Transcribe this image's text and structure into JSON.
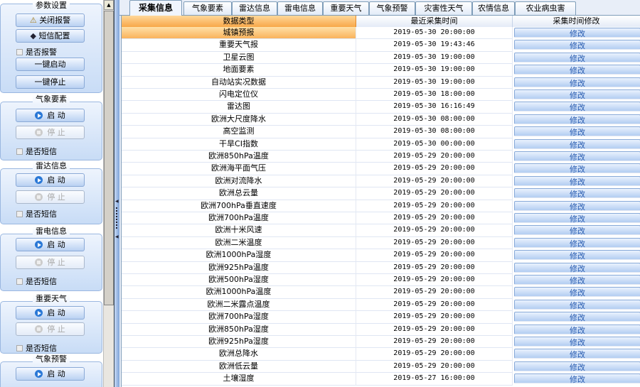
{
  "sidebar": {
    "param_group": {
      "title": "参数设置",
      "close_alarm": "关闭报警",
      "sms_config": "短信配置",
      "alarm_check": "是否报警",
      "start_all": "一键启动",
      "stop_all": "一键停止"
    },
    "groups": [
      {
        "title": "气象要素",
        "start": "启  动",
        "stop": "停  止",
        "sms_check": "是否短信"
      },
      {
        "title": "雷达信息",
        "start": "启  动",
        "stop": "停  止",
        "sms_check": "是否短信"
      },
      {
        "title": "雷电信息",
        "start": "启  动",
        "stop": "停  止",
        "sms_check": "是否短信"
      },
      {
        "title": "重要天气",
        "start": "启  动",
        "stop": "停  止",
        "sms_check": "是否短信"
      },
      {
        "title": "气象预警",
        "start": "启  动"
      }
    ]
  },
  "tabs": [
    "采集信息",
    "气象要素",
    "雷达信息",
    "雷电信息",
    "重要天气",
    "气象预警",
    "灾害性天气",
    "农情信息",
    "农业病虫害"
  ],
  "active_tab": 0,
  "table": {
    "headers": [
      "数据类型",
      "最近采集时间",
      "采集时间修改"
    ],
    "modify_label": "修改",
    "rows": [
      [
        "城镇预报",
        "2019-05-30 20:00:00"
      ],
      [
        "重要天气报",
        "2019-05-30 19:43:46"
      ],
      [
        "卫星云图",
        "2019-05-30 19:00:00"
      ],
      [
        "地面要素",
        "2019-05-30 19:00:00"
      ],
      [
        "自动站实况数据",
        "2019-05-30 19:00:00"
      ],
      [
        "闪电定位仪",
        "2019-05-30 18:00:00"
      ],
      [
        "雷达图",
        "2019-05-30 16:16:49"
      ],
      [
        "欧洲大尺度降水",
        "2019-05-30 08:00:00"
      ],
      [
        "高空监测",
        "2019-05-30 08:00:00"
      ],
      [
        "干旱CI指数",
        "2019-05-30 00:00:00"
      ],
      [
        "欧洲850hPa温度",
        "2019-05-29 20:00:00"
      ],
      [
        "欧洲海平面气压",
        "2019-05-29 20:00:00"
      ],
      [
        "欧洲对流降水",
        "2019-05-29 20:00:00"
      ],
      [
        "欧洲总云量",
        "2019-05-29 20:00:00"
      ],
      [
        "欧洲700hPa垂直速度",
        "2019-05-29 20:00:00"
      ],
      [
        "欧洲700hPa温度",
        "2019-05-29 20:00:00"
      ],
      [
        "欧洲十米风速",
        "2019-05-29 20:00:00"
      ],
      [
        "欧洲二米温度",
        "2019-05-29 20:00:00"
      ],
      [
        "欧洲1000hPa湿度",
        "2019-05-29 20:00:00"
      ],
      [
        "欧洲925hPa温度",
        "2019-05-29 20:00:00"
      ],
      [
        "欧洲500hPa湿度",
        "2019-05-29 20:00:00"
      ],
      [
        "欧洲1000hPa温度",
        "2019-05-29 20:00:00"
      ],
      [
        "欧洲二米露点温度",
        "2019-05-29 20:00:00"
      ],
      [
        "欧洲700hPa湿度",
        "2019-05-29 20:00:00"
      ],
      [
        "欧洲850hPa湿度",
        "2019-05-29 20:00:00"
      ],
      [
        "欧洲925hPa湿度",
        "2019-05-29 20:00:00"
      ],
      [
        "欧洲总降水",
        "2019-05-29 20:00:00"
      ],
      [
        "欧洲低云量",
        "2019-05-29 20:00:00"
      ],
      [
        "土壤湿度",
        "2019-05-27 16:00:00"
      ]
    ]
  }
}
